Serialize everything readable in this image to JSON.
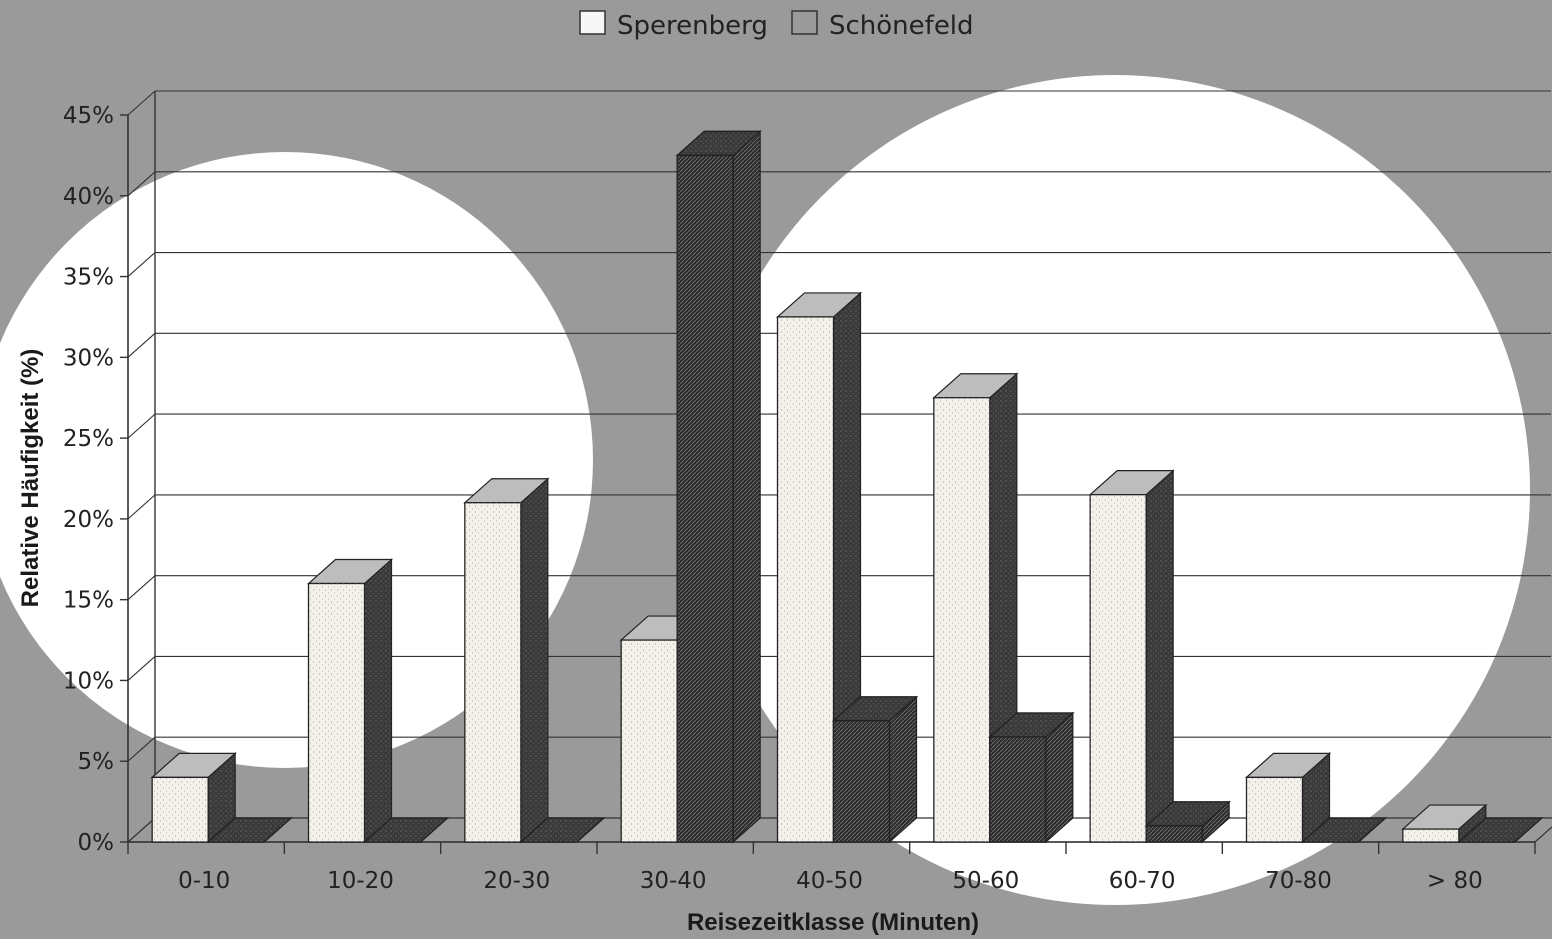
{
  "chart_data": {
    "type": "bar",
    "title": "",
    "xlabel": "Reisezeitklasse (Minuten)",
    "ylabel": "Relative Häufigkeit (%)",
    "ylim": [
      0,
      45
    ],
    "yticks": [
      "0%",
      "5%",
      "10%",
      "15%",
      "20%",
      "25%",
      "30%",
      "35%",
      "40%",
      "45%"
    ],
    "grid": true,
    "legend_position": "top-center",
    "categories": [
      "0-10",
      "10-20",
      "20-30",
      "30-40",
      "40-50",
      "50-60",
      "60-70",
      "70-80",
      "> 80"
    ],
    "series": [
      {
        "name": "Sperenberg",
        "values": [
          4,
          16,
          21,
          12.5,
          32.5,
          27.5,
          21.5,
          4,
          0.8
        ],
        "color": "#f4f1ea"
      },
      {
        "name": "Schönefeld",
        "values": [
          0,
          0,
          0,
          42.5,
          7.5,
          6.5,
          1,
          0,
          0
        ],
        "color": "#3e3e3e"
      }
    ]
  }
}
